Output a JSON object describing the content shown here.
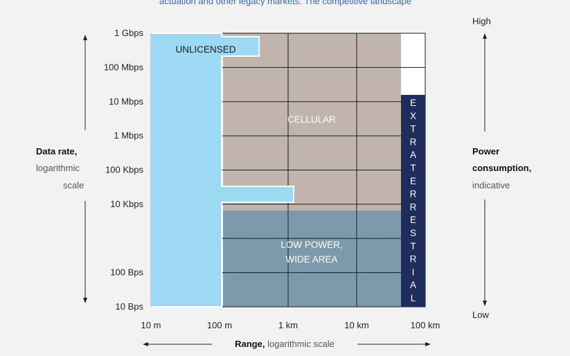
{
  "top_text": "actuation and other legacy markets. The competitive landscape",
  "chart_data": {
    "type": "area",
    "x_axis": {
      "label_bold": "Range,",
      "label_rest": "logarithmic scale",
      "scale": "log",
      "tick_labels": [
        "10 m",
        "100 m",
        "1 km",
        "10 km",
        "100 km"
      ],
      "tick_values_m": [
        10,
        100,
        1000,
        10000,
        100000
      ]
    },
    "y_axis": {
      "label_bold": "Data rate,",
      "label_line2": "logarithmic",
      "label_line3": "scale",
      "scale": "log",
      "tick_labels": [
        "1 Gbps",
        "100 Mbps",
        "10 Mbps",
        "1 Mbps",
        "100 Kbps",
        "10 Kbps",
        "100 Bps",
        "10 Bps"
      ],
      "tick_values_bps": [
        1000000000,
        100000000,
        10000000,
        1000000,
        100000,
        10000,
        100,
        10
      ]
    },
    "right_axis": {
      "top_label": "High",
      "bottom_label": "Low",
      "label_line1": "Power",
      "label_line2": "consumption,",
      "label_line3": "indicative"
    },
    "regions": [
      {
        "name": "UNLICENSED",
        "color": "#9dd9f3"
      },
      {
        "name": "CELLULAR",
        "color": "#c0b4ad"
      },
      {
        "name_line1": "LOW POWER,",
        "name_line2": "WIDE AREA",
        "color": "#7d9aac"
      },
      {
        "name": "EXTRATERRESTRIAL",
        "color": "#1f2d5c"
      }
    ],
    "grid": true
  }
}
